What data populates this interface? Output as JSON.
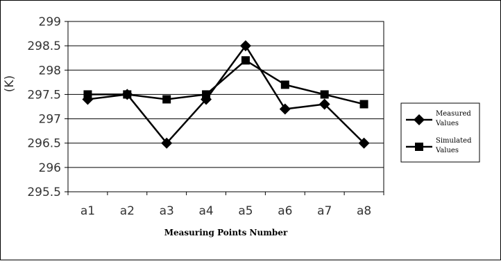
{
  "chart_data": {
    "type": "line",
    "title": "",
    "xlabel": "Measuring Points Number",
    "ylabel": "(K)",
    "categories": [
      "a1",
      "a2",
      "a3",
      "a4",
      "a5",
      "a6",
      "a7",
      "a8"
    ],
    "ylim": [
      295.5,
      299
    ],
    "yticks": [
      "295.5",
      "296",
      "296.5",
      "297",
      "297.5",
      "298",
      "298.5",
      "299"
    ],
    "grid": true,
    "legend_position": "right",
    "series": [
      {
        "name": "Measured Values",
        "legend_lines": [
          "Measured",
          "Values"
        ],
        "marker": "diamond",
        "values": [
          297.4,
          297.5,
          296.5,
          297.4,
          298.5,
          297.2,
          297.3,
          296.5
        ]
      },
      {
        "name": "Simulated Values",
        "legend_lines": [
          "Simulated",
          "Values"
        ],
        "marker": "square",
        "values": [
          297.5,
          297.5,
          297.4,
          297.5,
          298.2,
          297.7,
          297.5,
          297.3
        ]
      }
    ]
  }
}
